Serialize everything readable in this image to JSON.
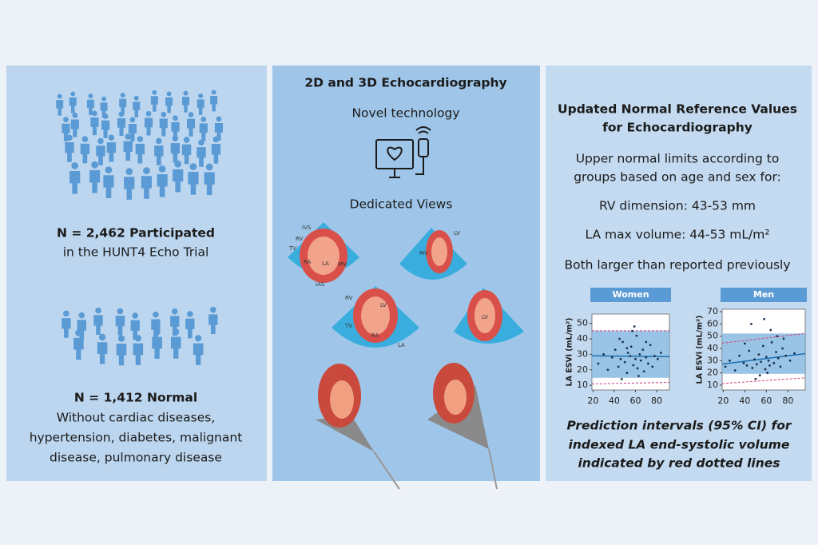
{
  "left": {
    "participants": [
      "N = 2,462 Participated",
      "in the HUNT4 Echo Trial"
    ],
    "normal": [
      "N = 1,412 Normal",
      "Without cardiac diseases,",
      "hypertension, diabetes, malignant",
      "disease, pulmonary disease"
    ]
  },
  "middle": {
    "title": "2D and 3D Echocardiography",
    "technology": "Novel technology",
    "views": "Dedicated Views",
    "labels": [
      "IVS",
      "RV",
      "TV",
      "RA",
      "LA",
      "MV",
      "IAS",
      "LV",
      "MV",
      "RV",
      "TV",
      "LV",
      "RA",
      "LA",
      "LV"
    ]
  },
  "right": {
    "title": [
      "Updated Normal Reference Values",
      "for Echocardiography"
    ],
    "lines": [
      "Upper normal limits according to",
      "groups based on age and sex for:",
      "RV dimension: 43-53 mm",
      "LA max volume: 44-53 mL/m²",
      "Both larger than reported previously"
    ],
    "caption": [
      "Prediction intervals (95% CI) for",
      "indexed LA end-systolic volume",
      "indicated by red dotted lines"
    ]
  },
  "chart_data": [
    {
      "type": "scatter",
      "title": "Women",
      "ylabel": "LA ESVi (mL/m²)",
      "color": "#1a3350",
      "x": [
        25,
        30,
        34,
        38,
        41,
        44,
        46,
        48,
        50,
        52,
        53,
        55,
        56,
        58,
        60,
        61,
        62,
        64,
        65,
        67,
        68,
        70,
        72,
        74,
        76,
        78,
        81,
        84,
        59,
        47,
        63,
        57,
        45,
        70,
        52
      ],
      "y": [
        24,
        30,
        20,
        28,
        33,
        22,
        27,
        38,
        25,
        18,
        31,
        29,
        35,
        23,
        27,
        42,
        21,
        30,
        26,
        33,
        19,
        28,
        24,
        36,
        22,
        29,
        27,
        31,
        48,
        14,
        16,
        45,
        40,
        38,
        34
      ],
      "xlim": [
        19,
        92
      ],
      "ylim": [
        7,
        56
      ],
      "xticks": [
        20,
        40,
        60,
        80
      ],
      "yticks": [
        10,
        20,
        30,
        40,
        50
      ]
    },
    {
      "type": "scatter",
      "title": "Men",
      "ylabel": "LA ESVi (mL/m²)",
      "color": "#1a3350",
      "x": [
        22,
        26,
        31,
        35,
        39,
        42,
        44,
        47,
        49,
        51,
        53,
        55,
        57,
        59,
        60,
        62,
        63,
        65,
        67,
        69,
        71,
        73,
        75,
        78,
        82,
        86,
        58,
        46,
        64,
        54,
        70,
        50,
        61,
        40,
        76
      ],
      "y": [
        25,
        30,
        22,
        34,
        28,
        26,
        38,
        24,
        31,
        27,
        35,
        29,
        42,
        23,
        33,
        30,
        26,
        45,
        28,
        37,
        32,
        25,
        40,
        34,
        30,
        36,
        64,
        60,
        55,
        18,
        50,
        15,
        20,
        44,
        48
      ],
      "xlim": [
        19,
        96
      ],
      "ylim": [
        6,
        72
      ],
      "xticks": [
        20,
        40,
        60,
        80
      ],
      "yticks": [
        10,
        20,
        30,
        40,
        50,
        60,
        70
      ]
    }
  ]
}
